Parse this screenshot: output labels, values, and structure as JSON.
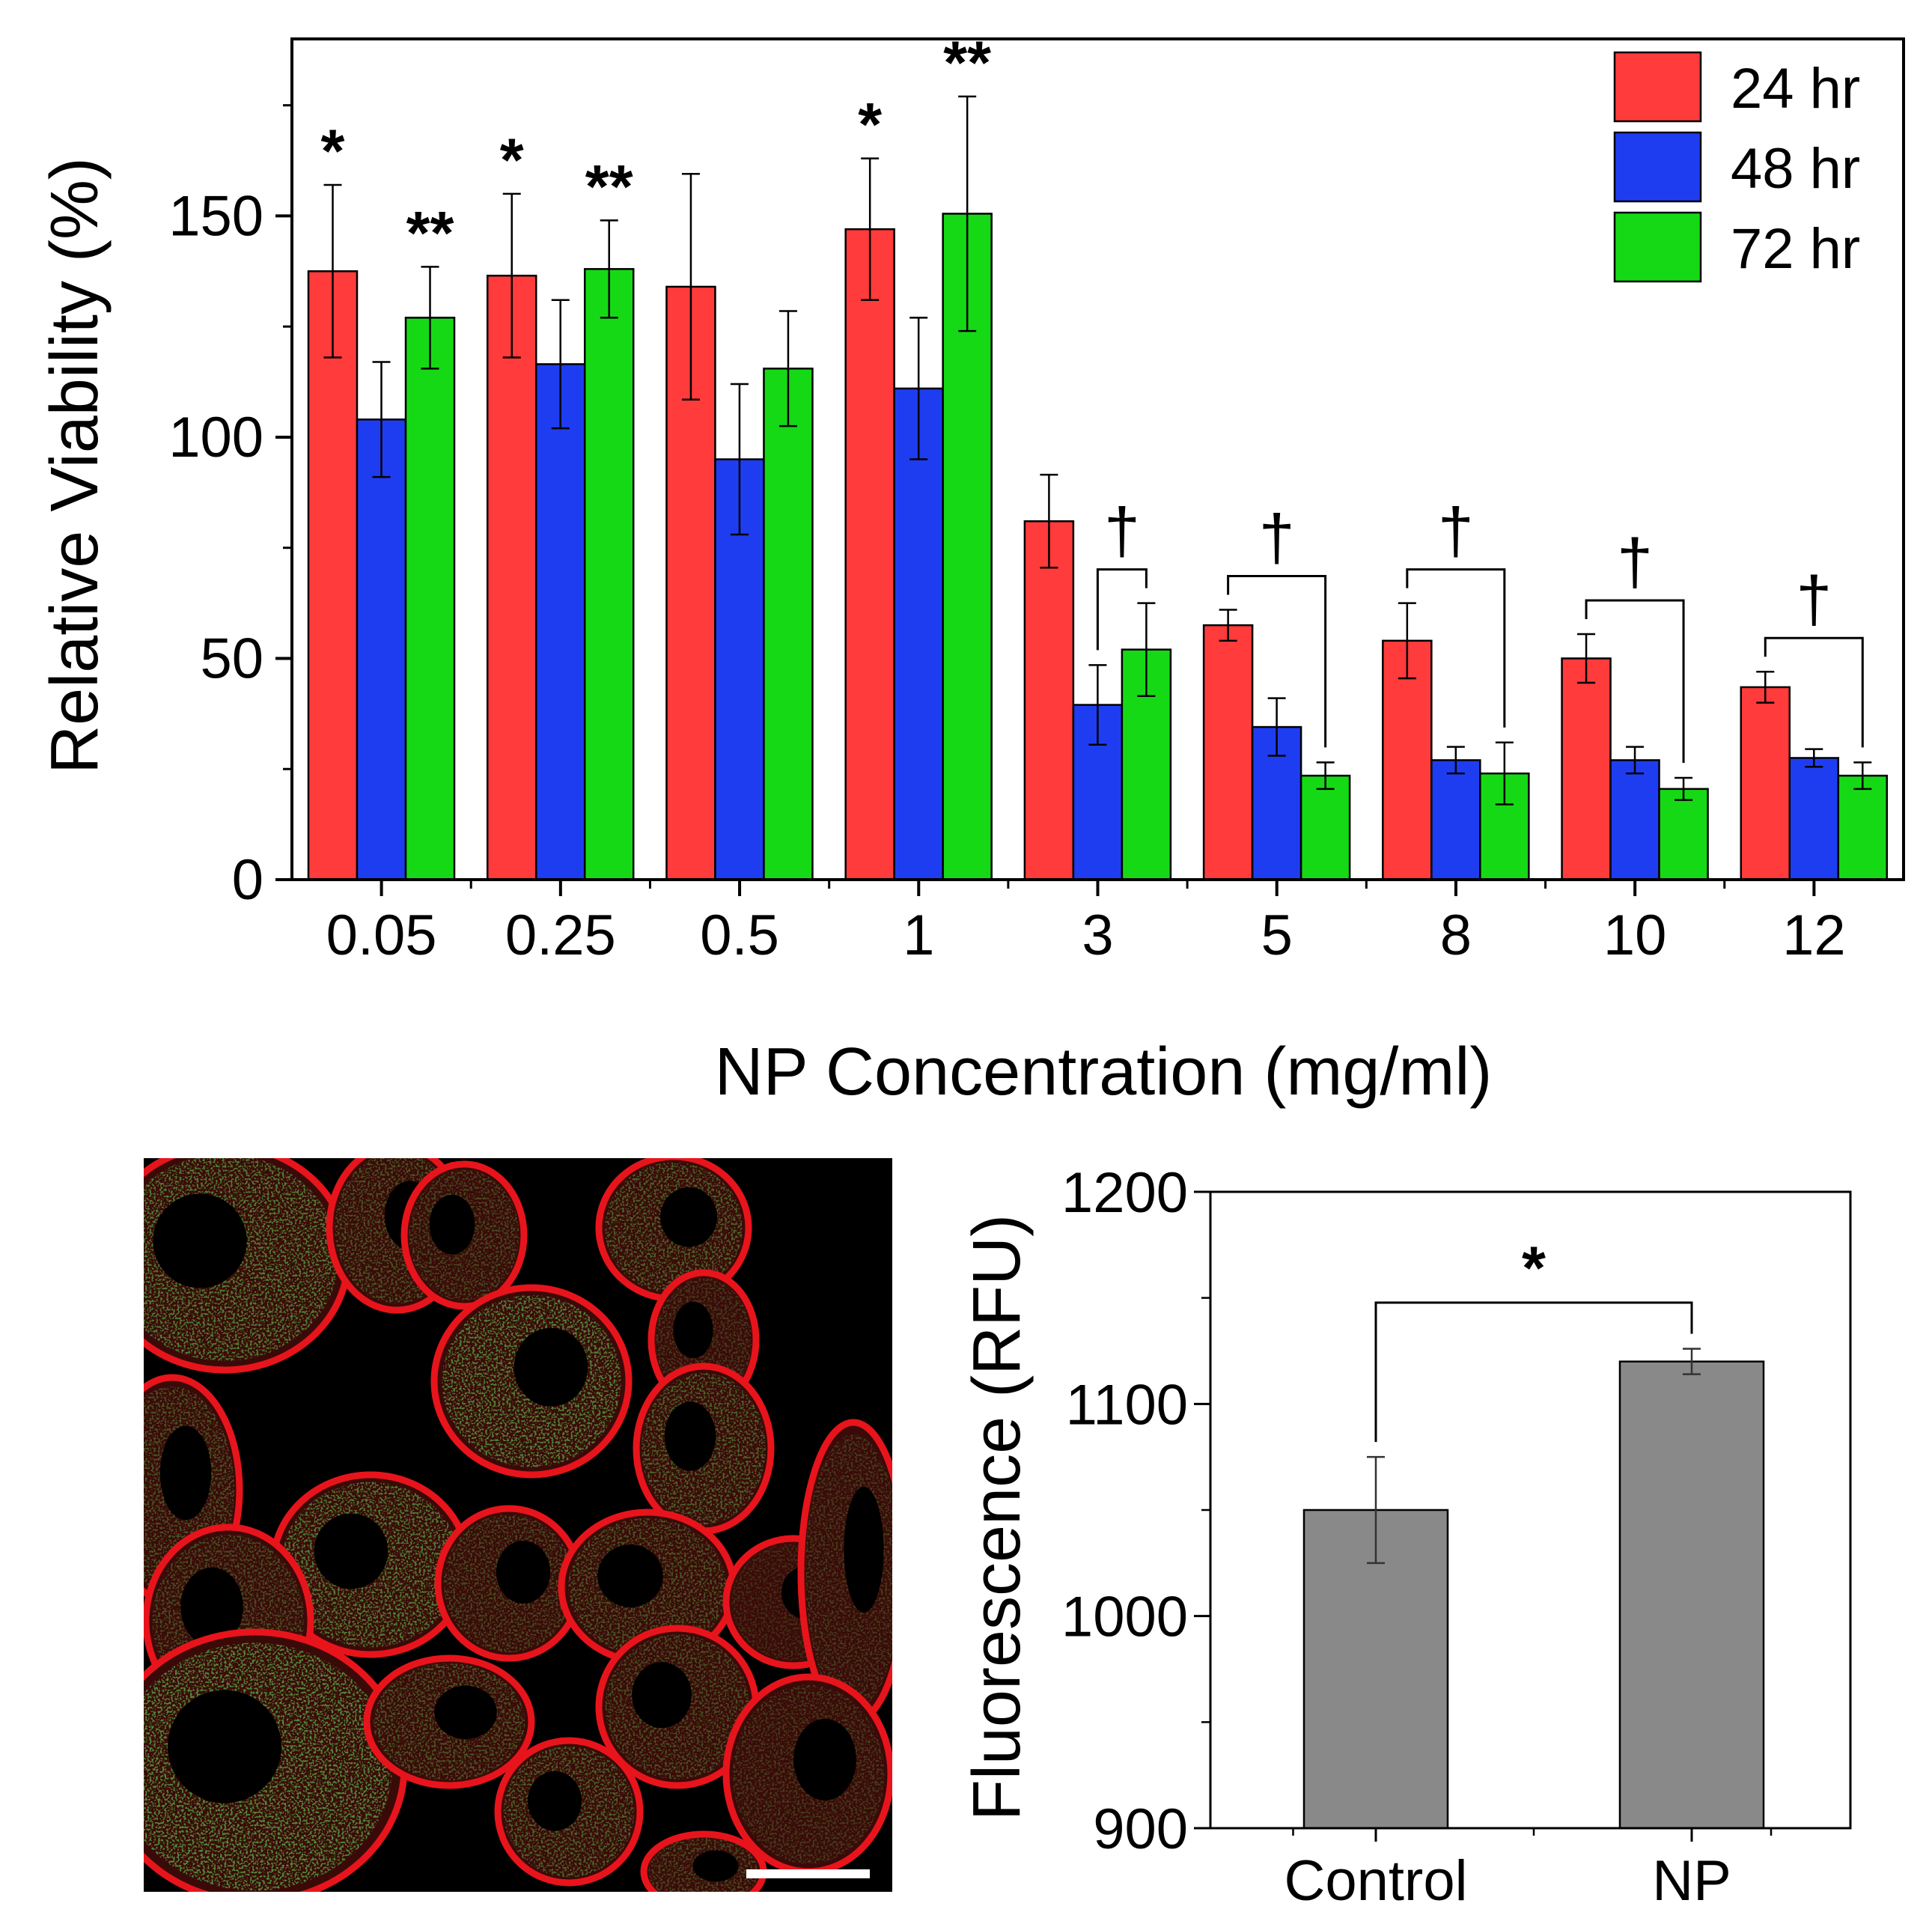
{
  "chart_data": [
    {
      "type": "bar",
      "xlabel": "NP Concentration (mg/ml)",
      "ylabel": "Relative Viability (%)",
      "ylim": [
        0,
        190
      ],
      "yticks": [
        0,
        50,
        100,
        150
      ],
      "categories": [
        "0.05",
        "0.25",
        "0.5",
        "1",
        "3",
        "5",
        "8",
        "10",
        "12"
      ],
      "legend_position": "top-right",
      "series": [
        {
          "name": "24 hr",
          "color": "#ff3b3b",
          "values": [
            137.5,
            136.5,
            134,
            147,
            81,
            57.5,
            54,
            50,
            43.5
          ],
          "errors": [
            19.5,
            18.5,
            25.5,
            16,
            10.5,
            3.5,
            8.5,
            5.5,
            3.5
          ]
        },
        {
          "name": "48 hr",
          "color": "#1f3df0",
          "values": [
            104,
            116.5,
            95,
            111,
            39.5,
            34.5,
            27,
            27,
            27.5
          ],
          "errors": [
            13,
            14.5,
            17,
            16,
            9,
            6.5,
            3,
            3,
            2
          ]
        },
        {
          "name": "72 hr",
          "color": "#16d916",
          "values": [
            127,
            138,
            115.5,
            150.5,
            52,
            23.5,
            24,
            20.5,
            23.5
          ],
          "errors": [
            11.5,
            11,
            13,
            26.5,
            10.5,
            3,
            7,
            2.5,
            3
          ]
        }
      ],
      "annotations": [
        {
          "group": 0,
          "series": 0,
          "text": "*"
        },
        {
          "group": 0,
          "series": 2,
          "text": "**"
        },
        {
          "group": 1,
          "series": 0,
          "text": "*"
        },
        {
          "group": 1,
          "series": 2,
          "text": "**"
        },
        {
          "group": 3,
          "series": 0,
          "text": "*"
        },
        {
          "group": 3,
          "series": 2,
          "text": "**"
        },
        {
          "group": 4,
          "type": "bracket",
          "from_series": 1,
          "to_series": 2,
          "text": "†"
        },
        {
          "group": 5,
          "type": "bracket",
          "from_series": 0,
          "to_series": 2,
          "text": "†"
        },
        {
          "group": 6,
          "type": "bracket",
          "from_series": 0,
          "to_series": 2,
          "text": "†"
        },
        {
          "group": 7,
          "type": "bracket",
          "from_series": 0,
          "to_series": 2,
          "text": "†"
        },
        {
          "group": 8,
          "type": "bracket",
          "from_series": 0,
          "to_series": 2,
          "text": "†"
        }
      ]
    },
    {
      "type": "bar",
      "xlabel": "",
      "ylabel": "Fluorescence (RFU)",
      "ylim": [
        900,
        1200
      ],
      "yticks": [
        900,
        1000,
        1100,
        1200
      ],
      "categories": [
        "Control",
        "NP"
      ],
      "color": "#898989",
      "values": [
        1050,
        1120
      ],
      "errors": [
        25,
        6
      ],
      "annotations": [
        {
          "type": "bracket",
          "from": 0,
          "to": 1,
          "text": "*"
        }
      ]
    }
  ],
  "micrograph": {
    "membrane_color": "#e8141c",
    "particle_color": "#22c41e",
    "background_color": "#000000",
    "scale_bar_color": "#ffffff"
  }
}
